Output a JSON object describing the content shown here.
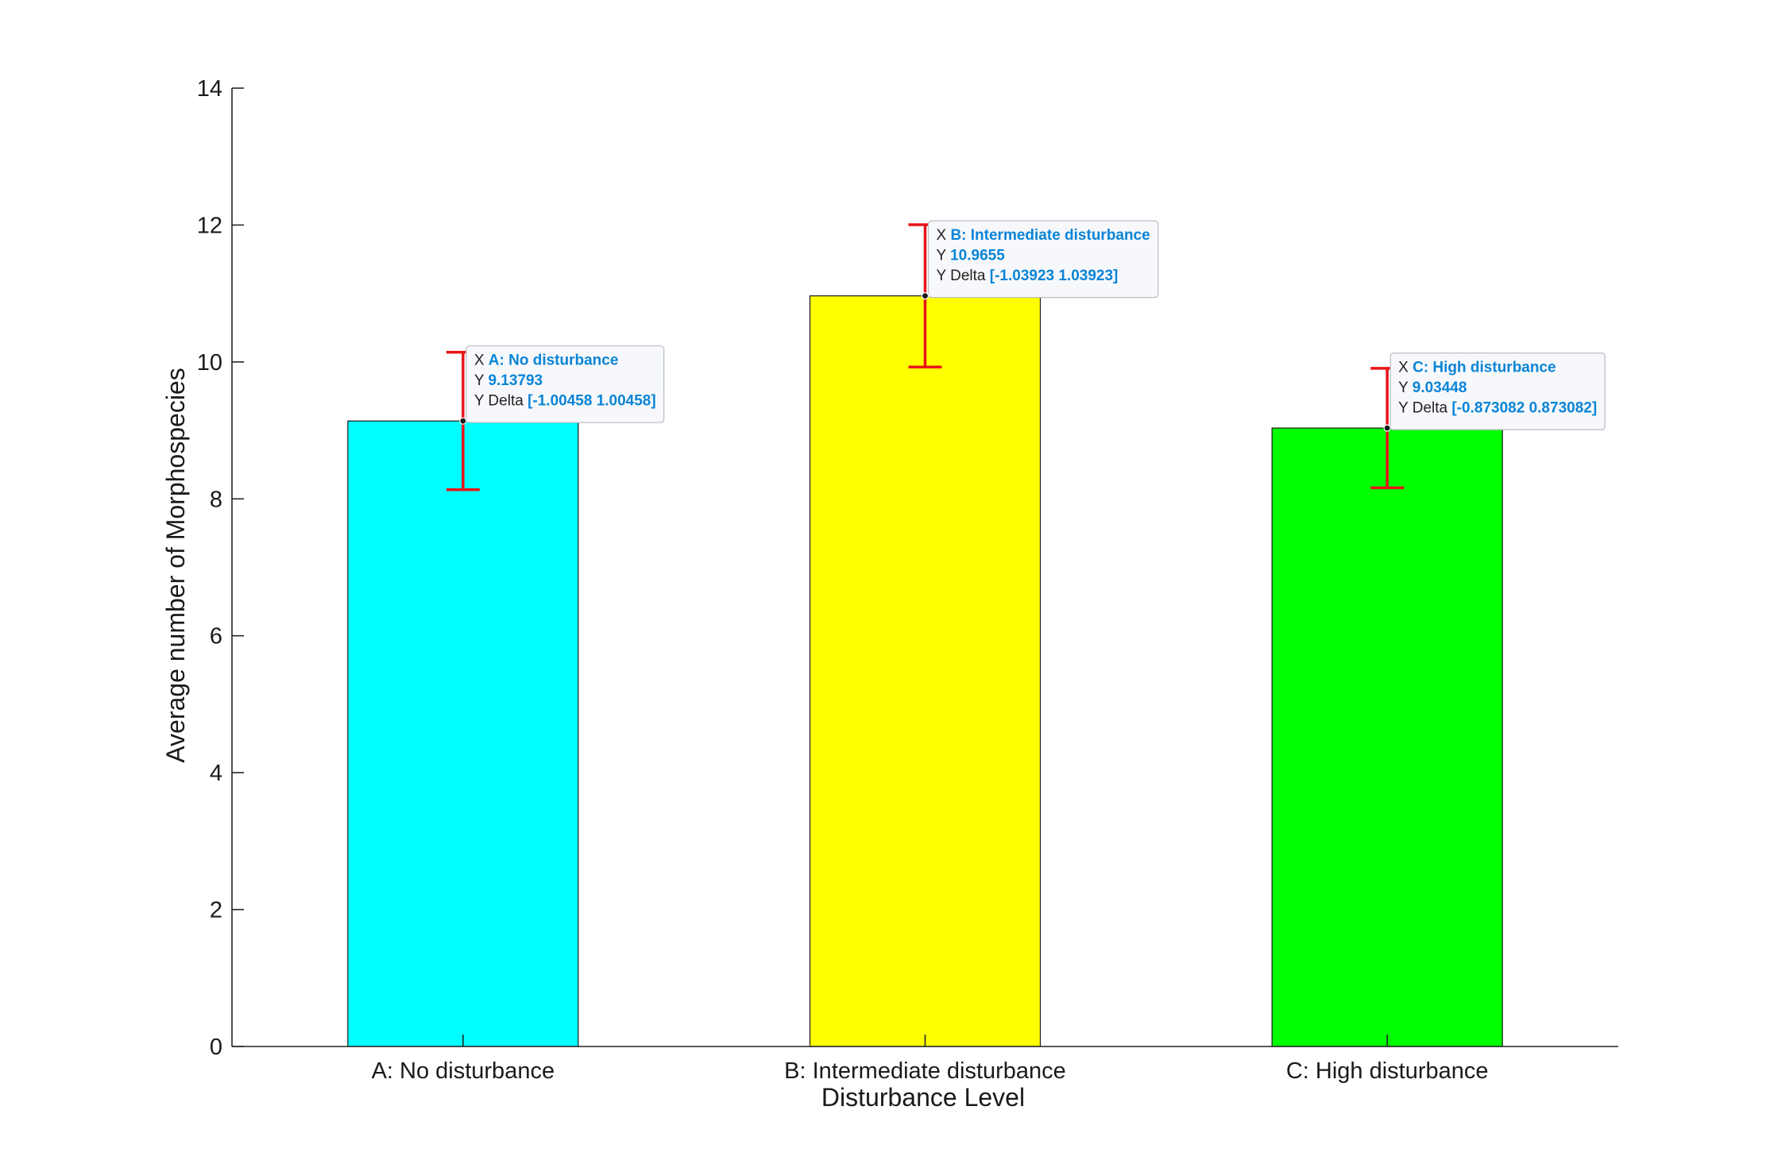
{
  "chart_data": {
    "type": "bar",
    "categories": [
      "A: No disturbance",
      "B: Intermediate disturbance",
      "C: High disturbance"
    ],
    "values": [
      9.13793,
      10.9655,
      9.03448
    ],
    "error_bars": [
      1.00458,
      1.03923,
      0.873082
    ],
    "bar_colors": [
      "#00ffff",
      "#ffff00",
      "#00ff00"
    ],
    "error_color": "#e8141a",
    "title": "",
    "xlabel": "Disturbance Level",
    "ylabel": "Average number of Morphospecies",
    "ylim": [
      0,
      14
    ],
    "yticks": [
      0,
      2,
      4,
      6,
      8,
      10,
      12,
      14
    ],
    "grid": false,
    "datatips": [
      {
        "x_key": "X",
        "x_val": "A: No disturbance",
        "y_key": "Y",
        "y_val": "9.13793",
        "d_key": "Y Delta",
        "d_val": "[-1.00458 1.00458]"
      },
      {
        "x_key": "X",
        "x_val": "B: Intermediate disturbance",
        "y_key": "Y",
        "y_val": "10.9655",
        "d_key": "Y Delta",
        "d_val": "[-1.03923 1.03923]"
      },
      {
        "x_key": "X",
        "x_val": "C: High disturbance",
        "y_key": "Y",
        "y_val": "9.03448",
        "d_key": "Y Delta",
        "d_val": "[-0.873082 0.873082]"
      }
    ],
    "datatip_value_color": "#0a84d6"
  }
}
